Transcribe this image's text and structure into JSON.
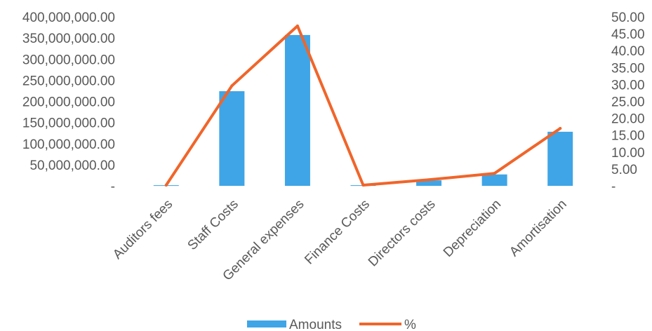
{
  "chart_data": {
    "type": "bar",
    "categories": [
      "Auditors fees",
      "Staff Costs",
      "General expenses",
      "Finance Costs",
      "Directors costs",
      "Depreciation",
      "Amortisation"
    ],
    "series": [
      {
        "name": "Amounts",
        "type": "bar",
        "axis": "left",
        "color": "#3fa5e6",
        "values": [
          1500000,
          224000000,
          357000000,
          1500000,
          13000000,
          27000000,
          128000000
        ]
      },
      {
        "name": "%",
        "type": "line",
        "axis": "right",
        "color": "#f0652a",
        "values": [
          0.2,
          29.6,
          47.3,
          0.2,
          1.8,
          3.7,
          17.0
        ]
      }
    ],
    "y_left": {
      "ylim": [
        0,
        400000000
      ],
      "ticks": [
        "-",
        "50,000,000.00",
        "100,000,000.00",
        "150,000,000.00",
        "200,000,000.00",
        "250,000,000.00",
        "300,000,000.00",
        "350,000,000.00",
        "400,000,000.00"
      ]
    },
    "y_right": {
      "ylim": [
        0,
        50
      ],
      "ticks": [
        "-",
        "5.00",
        "10.00",
        "15.00",
        "20.00",
        "25.00",
        "30.00",
        "35.00",
        "40.00",
        "45.00",
        "50.00"
      ]
    },
    "grid": false,
    "legend_position": "bottom",
    "legend": [
      {
        "label": "Amounts",
        "swatch": "bar"
      },
      {
        "label": "%",
        "swatch": "line"
      }
    ]
  }
}
